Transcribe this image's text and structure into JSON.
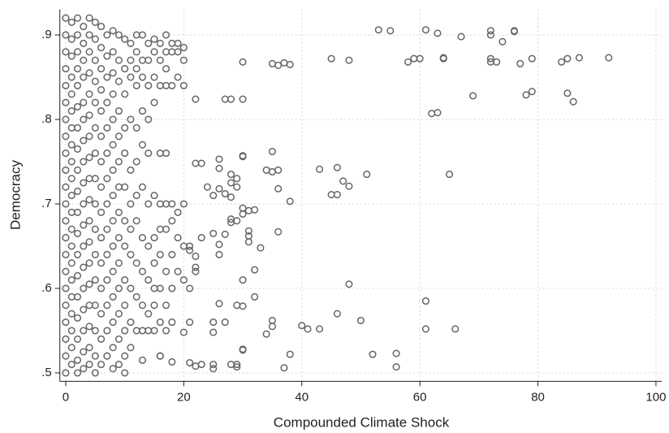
{
  "chart_data": {
    "type": "scatter",
    "x_label": "Compounded Climate Shock",
    "y_label": "Democracy",
    "xlim": [
      -1,
      101
    ],
    "ylim": [
      0.49,
      0.93
    ],
    "xticks": [
      0,
      20,
      40,
      60,
      80,
      100
    ],
    "yticks": [
      {
        "value": 0.5,
        "label": ".5"
      },
      {
        "value": 0.6,
        "label": ".6"
      },
      {
        "value": 0.7,
        "label": ".7"
      },
      {
        "value": 0.8,
        "label": ".8"
      },
      {
        "value": 0.9,
        "label": ".9"
      }
    ],
    "grid": true,
    "color": "#666666",
    "x": [
      0,
      0,
      0,
      0,
      0,
      0,
      0,
      0,
      0,
      0,
      0,
      0,
      0,
      0,
      0,
      0,
      0,
      0,
      0,
      0,
      0,
      0,
      1,
      1,
      1,
      1,
      1,
      1,
      1,
      1,
      1,
      1,
      1,
      1,
      1,
      1,
      1,
      1,
      1,
      1,
      1,
      1,
      1,
      2,
      2,
      2,
      2,
      2,
      2,
      2,
      2,
      2,
      2,
      2,
      2,
      2,
      2,
      2,
      2,
      2,
      2,
      2,
      3,
      3,
      3,
      3,
      3,
      3,
      3,
      3,
      3,
      3,
      3,
      3,
      3,
      3,
      3,
      3,
      3,
      3,
      4,
      4,
      4,
      4,
      4,
      4,
      4,
      4,
      4,
      4,
      4,
      4,
      4,
      4,
      4,
      4,
      4,
      4,
      5,
      5,
      5,
      5,
      5,
      5,
      5,
      5,
      5,
      5,
      5,
      5,
      5,
      5,
      5,
      5,
      6,
      6,
      6,
      6,
      6,
      6,
      6,
      6,
      6,
      6,
      6,
      6,
      6,
      6,
      6,
      7,
      7,
      7,
      7,
      7,
      7,
      7,
      7,
      7,
      7,
      7,
      7,
      7,
      7,
      8,
      8,
      8,
      8,
      8,
      8,
      8,
      8,
      8,
      8,
      8,
      8,
      8,
      8,
      8,
      9,
      9,
      9,
      9,
      9,
      9,
      9,
      9,
      9,
      9,
      9,
      9,
      9,
      9,
      10,
      10,
      10,
      10,
      10,
      10,
      10,
      10,
      10,
      10,
      10,
      10,
      10,
      11,
      11,
      11,
      11,
      11,
      11,
      11,
      11,
      11,
      11,
      11,
      12,
      12,
      12,
      12,
      12,
      12,
      12,
      12,
      12,
      12,
      12,
      13,
      13,
      13,
      13,
      13,
      13,
      13,
      13,
      13,
      13,
      13,
      14,
      14,
      14,
      14,
      14,
      14,
      14,
      14,
      14,
      14,
      15,
      15,
      15,
      15,
      15,
      15,
      15,
      15,
      15,
      15,
      16,
      16,
      16,
      16,
      16,
      16,
      16,
      16,
      16,
      16,
      17,
      17,
      17,
      17,
      17,
      17,
      17,
      17,
      17,
      17,
      18,
      18,
      18,
      18,
      18,
      18,
      18,
      18,
      19,
      19,
      19,
      19,
      19,
      19,
      20,
      20,
      20,
      20,
      20,
      20,
      53,
      55,
      61,
      63,
      67,
      72,
      72,
      74,
      76,
      76,
      45,
      48,
      58,
      59,
      60,
      64,
      64,
      72,
      72,
      73,
      77,
      79,
      84,
      85,
      87,
      92,
      35,
      36,
      37,
      38,
      30,
      69,
      78,
      79,
      85,
      86,
      62,
      63,
      27,
      28,
      30,
      22,
      65,
      51,
      46,
      43,
      47,
      48,
      45,
      46,
      35,
      36,
      34,
      35,
      36,
      38,
      30,
      30,
      26,
      26,
      28,
      29,
      28,
      29,
      27,
      28,
      26,
      25,
      24,
      23,
      22,
      36,
      33,
      31,
      31,
      31,
      32,
      31,
      30,
      30,
      28,
      28,
      29,
      27,
      25,
      26,
      26,
      23,
      22,
      21,
      21,
      22,
      22,
      21,
      30,
      32,
      29,
      30,
      32,
      26,
      27,
      25,
      25,
      48,
      61,
      46,
      50,
      40,
      41,
      43,
      35,
      35,
      34,
      61,
      66,
      38,
      37,
      52,
      56,
      56,
      30,
      30,
      29,
      29,
      28,
      25,
      25,
      23,
      22,
      21,
      21,
      20,
      18,
      16
    ],
    "values": [
      0.92,
      0.9,
      0.88,
      0.86,
      0.84,
      0.82,
      0.8,
      0.78,
      0.76,
      0.74,
      0.72,
      0.7,
      0.68,
      0.66,
      0.64,
      0.62,
      0.6,
      0.58,
      0.56,
      0.54,
      0.52,
      0.5,
      0.915,
      0.895,
      0.875,
      0.85,
      0.83,
      0.81,
      0.79,
      0.77,
      0.75,
      0.73,
      0.71,
      0.69,
      0.67,
      0.65,
      0.63,
      0.61,
      0.59,
      0.57,
      0.55,
      0.53,
      0.51,
      0.92,
      0.9,
      0.88,
      0.86,
      0.84,
      0.815,
      0.79,
      0.765,
      0.74,
      0.715,
      0.69,
      0.665,
      0.64,
      0.615,
      0.59,
      0.565,
      0.54,
      0.515,
      0.5,
      0.91,
      0.89,
      0.87,
      0.85,
      0.82,
      0.8,
      0.775,
      0.75,
      0.725,
      0.7,
      0.675,
      0.65,
      0.625,
      0.6,
      0.575,
      0.55,
      0.525,
      0.505,
      0.92,
      0.9,
      0.88,
      0.855,
      0.83,
      0.805,
      0.78,
      0.755,
      0.73,
      0.705,
      0.68,
      0.655,
      0.63,
      0.605,
      0.58,
      0.555,
      0.53,
      0.51,
      0.915,
      0.895,
      0.87,
      0.845,
      0.82,
      0.79,
      0.76,
      0.73,
      0.7,
      0.67,
      0.64,
      0.61,
      0.58,
      0.55,
      0.52,
      0.5,
      0.91,
      0.885,
      0.86,
      0.835,
      0.81,
      0.78,
      0.75,
      0.72,
      0.69,
      0.66,
      0.63,
      0.6,
      0.57,
      0.54,
      0.51,
      0.9,
      0.875,
      0.85,
      0.82,
      0.79,
      0.76,
      0.73,
      0.7,
      0.67,
      0.64,
      0.61,
      0.58,
      0.55,
      0.52,
      0.905,
      0.88,
      0.855,
      0.83,
      0.8,
      0.77,
      0.74,
      0.71,
      0.68,
      0.65,
      0.62,
      0.59,
      0.56,
      0.53,
      0.505,
      0.9,
      0.87,
      0.845,
      0.81,
      0.78,
      0.75,
      0.72,
      0.69,
      0.66,
      0.63,
      0.6,
      0.57,
      0.54,
      0.51,
      0.895,
      0.86,
      0.83,
      0.79,
      0.76,
      0.72,
      0.68,
      0.65,
      0.61,
      0.58,
      0.55,
      0.52,
      0.5,
      0.89,
      0.87,
      0.85,
      0.8,
      0.74,
      0.7,
      0.67,
      0.64,
      0.6,
      0.56,
      0.53,
      0.9,
      0.88,
      0.86,
      0.84,
      0.79,
      0.75,
      0.71,
      0.68,
      0.63,
      0.59,
      0.55,
      0.9,
      0.87,
      0.85,
      0.81,
      0.77,
      0.72,
      0.66,
      0.62,
      0.58,
      0.55,
      0.515,
      0.89,
      0.87,
      0.84,
      0.8,
      0.76,
      0.7,
      0.65,
      0.61,
      0.57,
      0.55,
      0.895,
      0.88,
      0.85,
      0.82,
      0.71,
      0.66,
      0.63,
      0.6,
      0.58,
      0.55,
      0.89,
      0.87,
      0.84,
      0.76,
      0.7,
      0.67,
      0.64,
      0.6,
      0.56,
      0.52,
      0.9,
      0.88,
      0.86,
      0.84,
      0.76,
      0.7,
      0.67,
      0.62,
      0.58,
      0.55,
      0.89,
      0.88,
      0.84,
      0.7,
      0.68,
      0.64,
      0.6,
      0.56,
      0.89,
      0.88,
      0.85,
      0.69,
      0.66,
      0.62,
      0.885,
      0.87,
      0.84,
      0.7,
      0.65,
      0.61,
      0.906,
      0.905,
      0.906,
      0.902,
      0.898,
      0.905,
      0.9,
      0.892,
      0.905,
      0.904,
      0.872,
      0.87,
      0.868,
      0.872,
      0.872,
      0.872,
      0.873,
      0.872,
      0.868,
      0.868,
      0.866,
      0.872,
      0.868,
      0.872,
      0.873,
      0.873,
      0.866,
      0.864,
      0.867,
      0.865,
      0.868,
      0.828,
      0.829,
      0.833,
      0.831,
      0.821,
      0.807,
      0.808,
      0.824,
      0.824,
      0.824,
      0.824,
      0.735,
      0.735,
      0.743,
      0.741,
      0.727,
      0.721,
      0.711,
      0.711,
      0.762,
      0.74,
      0.74,
      0.738,
      0.718,
      0.703,
      0.756,
      0.757,
      0.753,
      0.742,
      0.735,
      0.73,
      0.725,
      0.72,
      0.712,
      0.708,
      0.718,
      0.71,
      0.72,
      0.748,
      0.748,
      0.667,
      0.648,
      0.668,
      0.662,
      0.655,
      0.693,
      0.692,
      0.695,
      0.688,
      0.682,
      0.678,
      0.68,
      0.664,
      0.665,
      0.652,
      0.64,
      0.66,
      0.638,
      0.645,
      0.65,
      0.625,
      0.62,
      0.6,
      0.61,
      0.622,
      0.58,
      0.579,
      0.59,
      0.582,
      0.56,
      0.56,
      0.548,
      0.605,
      0.585,
      0.57,
      0.562,
      0.556,
      0.552,
      0.552,
      0.562,
      0.555,
      0.546,
      0.552,
      0.552,
      0.522,
      0.506,
      0.522,
      0.523,
      0.507,
      0.528,
      0.527,
      0.51,
      0.507,
      0.51,
      0.51,
      0.505,
      0.51,
      0.508,
      0.512,
      0.56,
      0.548,
      0.513,
      0.52
    ]
  }
}
